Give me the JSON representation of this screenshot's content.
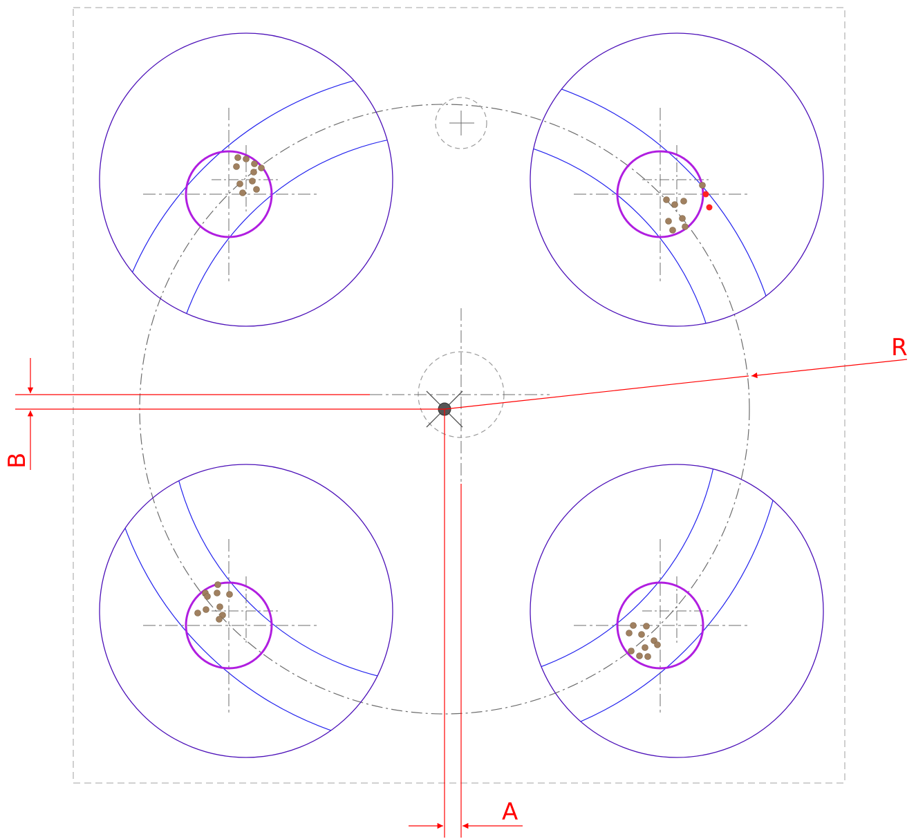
{
  "labels": {
    "radius": "R",
    "offset_b": "B",
    "offset_a": "A"
  },
  "colors": {
    "background": "#ffffff",
    "frame": "#b5b5b5",
    "centerline": "#6b6b6b",
    "outer_circle": "#4b0fb8",
    "arc": "#2222ee",
    "inner_circle": "#b01ee0",
    "dimension": "#ff0000",
    "dot": "#a08060",
    "center_mark": "#505050"
  }
}
